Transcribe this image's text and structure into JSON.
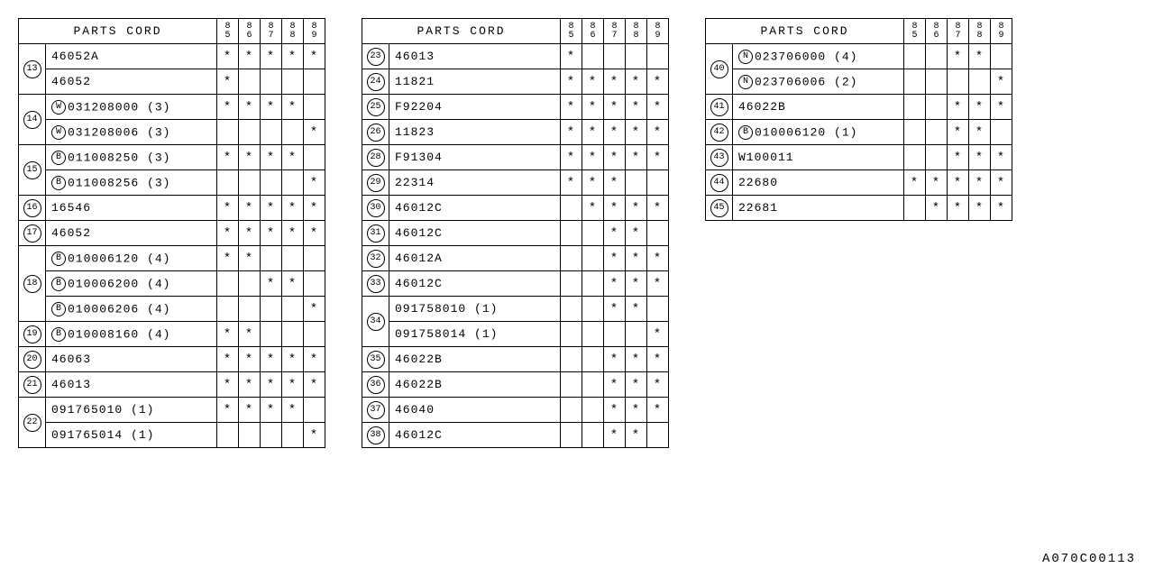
{
  "footer_code": "A070C00113",
  "header": {
    "parts_label": "PARTS CORD",
    "year_columns": [
      "85",
      "86",
      "87",
      "88",
      "89"
    ]
  },
  "tables": [
    {
      "rows": [
        {
          "idx": "13",
          "rowspan": 2,
          "prefix": "",
          "part": "46052A",
          "qty": "",
          "marks": [
            "*",
            "*",
            "*",
            "*",
            "*"
          ]
        },
        {
          "prefix": "",
          "part": "46052",
          "qty": "",
          "marks": [
            "*",
            "",
            "",
            "",
            ""
          ]
        },
        {
          "idx": "14",
          "rowspan": 2,
          "prefix": "W",
          "part": "031208000",
          "qty": "(3)",
          "marks": [
            "*",
            "*",
            "*",
            "*",
            ""
          ]
        },
        {
          "prefix": "W",
          "part": "031208006",
          "qty": "(3)",
          "marks": [
            "",
            "",
            "",
            "",
            "*"
          ]
        },
        {
          "idx": "15",
          "rowspan": 2,
          "prefix": "B",
          "part": "011008250",
          "qty": "(3)",
          "marks": [
            "*",
            "*",
            "*",
            "*",
            ""
          ]
        },
        {
          "prefix": "B",
          "part": "011008256",
          "qty": "(3)",
          "marks": [
            "",
            "",
            "",
            "",
            "*"
          ]
        },
        {
          "idx": "16",
          "rowspan": 1,
          "prefix": "",
          "part": "16546",
          "qty": "",
          "marks": [
            "*",
            "*",
            "*",
            "*",
            "*"
          ]
        },
        {
          "idx": "17",
          "rowspan": 1,
          "prefix": "",
          "part": "46052",
          "qty": "",
          "marks": [
            "*",
            "*",
            "*",
            "*",
            "*"
          ]
        },
        {
          "idx": "18",
          "rowspan": 3,
          "prefix": "B",
          "part": "010006120",
          "qty": "(4)",
          "marks": [
            "*",
            "*",
            "",
            "",
            ""
          ]
        },
        {
          "prefix": "B",
          "part": "010006200",
          "qty": "(4)",
          "marks": [
            "",
            "",
            "*",
            "*",
            ""
          ]
        },
        {
          "prefix": "B",
          "part": "010006206",
          "qty": "(4)",
          "marks": [
            "",
            "",
            "",
            "",
            "*"
          ]
        },
        {
          "idx": "19",
          "rowspan": 1,
          "prefix": "B",
          "part": "010008160",
          "qty": "(4)",
          "marks": [
            "*",
            "*",
            "",
            "",
            ""
          ]
        },
        {
          "idx": "20",
          "rowspan": 1,
          "prefix": "",
          "part": "46063",
          "qty": "",
          "marks": [
            "*",
            "*",
            "*",
            "*",
            "*"
          ]
        },
        {
          "idx": "21",
          "rowspan": 1,
          "prefix": "",
          "part": "46013",
          "qty": "",
          "marks": [
            "*",
            "*",
            "*",
            "*",
            "*"
          ]
        },
        {
          "idx": "22",
          "rowspan": 2,
          "prefix": "",
          "part": "091765010",
          "qty": "(1)",
          "marks": [
            "*",
            "*",
            "*",
            "*",
            ""
          ]
        },
        {
          "prefix": "",
          "part": "091765014",
          "qty": "(1)",
          "marks": [
            "",
            "",
            "",
            "",
            "*"
          ]
        }
      ]
    },
    {
      "rows": [
        {
          "idx": "23",
          "rowspan": 1,
          "prefix": "",
          "part": "46013",
          "qty": "",
          "marks": [
            "*",
            "",
            "",
            "",
            ""
          ]
        },
        {
          "idx": "24",
          "rowspan": 1,
          "prefix": "",
          "part": "11821",
          "qty": "",
          "marks": [
            "*",
            "*",
            "*",
            "*",
            "*"
          ]
        },
        {
          "idx": "25",
          "rowspan": 1,
          "prefix": "",
          "part": "F92204",
          "qty": "",
          "marks": [
            "*",
            "*",
            "*",
            "*",
            "*"
          ]
        },
        {
          "idx": "26",
          "rowspan": 1,
          "prefix": "",
          "part": "11823",
          "qty": "",
          "marks": [
            "*",
            "*",
            "*",
            "*",
            "*"
          ]
        },
        {
          "idx": "28",
          "rowspan": 1,
          "prefix": "",
          "part": "F91304",
          "qty": "",
          "marks": [
            "*",
            "*",
            "*",
            "*",
            "*"
          ]
        },
        {
          "idx": "29",
          "rowspan": 1,
          "prefix": "",
          "part": "22314",
          "qty": "",
          "marks": [
            "*",
            "*",
            "*",
            "",
            ""
          ]
        },
        {
          "idx": "30",
          "rowspan": 1,
          "prefix": "",
          "part": "46012C",
          "qty": "",
          "marks": [
            "",
            "*",
            "*",
            "*",
            "*"
          ]
        },
        {
          "idx": "31",
          "rowspan": 1,
          "prefix": "",
          "part": "46012C",
          "qty": "",
          "marks": [
            "",
            "",
            "*",
            "*",
            ""
          ]
        },
        {
          "idx": "32",
          "rowspan": 1,
          "prefix": "",
          "part": "46012A",
          "qty": "",
          "marks": [
            "",
            "",
            "*",
            "*",
            "*"
          ]
        },
        {
          "idx": "33",
          "rowspan": 1,
          "prefix": "",
          "part": "46012C",
          "qty": "",
          "marks": [
            "",
            "",
            "*",
            "*",
            "*"
          ]
        },
        {
          "idx": "34",
          "rowspan": 2,
          "prefix": "",
          "part": "091758010",
          "qty": "(1)",
          "marks": [
            "",
            "",
            "*",
            "*",
            ""
          ]
        },
        {
          "prefix": "",
          "part": "091758014",
          "qty": "(1)",
          "marks": [
            "",
            "",
            "",
            "",
            "*"
          ]
        },
        {
          "idx": "35",
          "rowspan": 1,
          "prefix": "",
          "part": "46022B",
          "qty": "",
          "marks": [
            "",
            "",
            "*",
            "*",
            "*"
          ]
        },
        {
          "idx": "36",
          "rowspan": 1,
          "prefix": "",
          "part": "46022B",
          "qty": "",
          "marks": [
            "",
            "",
            "*",
            "*",
            "*"
          ]
        },
        {
          "idx": "37",
          "rowspan": 1,
          "prefix": "",
          "part": "46040",
          "qty": "",
          "marks": [
            "",
            "",
            "*",
            "*",
            "*"
          ]
        },
        {
          "idx": "38",
          "rowspan": 1,
          "prefix": "",
          "part": "46012C",
          "qty": "",
          "marks": [
            "",
            "",
            "*",
            "*",
            ""
          ]
        }
      ]
    },
    {
      "rows": [
        {
          "idx": "40",
          "rowspan": 2,
          "prefix": "N",
          "part": "023706000",
          "qty": "(4)",
          "marks": [
            "",
            "",
            "*",
            "*",
            ""
          ]
        },
        {
          "prefix": "N",
          "part": "023706006",
          "qty": "(2)",
          "marks": [
            "",
            "",
            "",
            "",
            "*"
          ]
        },
        {
          "idx": "41",
          "rowspan": 1,
          "prefix": "",
          "part": "46022B",
          "qty": "",
          "marks": [
            "",
            "",
            "*",
            "*",
            "*"
          ]
        },
        {
          "idx": "42",
          "rowspan": 1,
          "prefix": "B",
          "part": "010006120",
          "qty": "(1)",
          "marks": [
            "",
            "",
            "*",
            "*",
            ""
          ]
        },
        {
          "idx": "43",
          "rowspan": 1,
          "prefix": "",
          "part": "W100011",
          "qty": "",
          "marks": [
            "",
            "",
            "*",
            "*",
            "*"
          ]
        },
        {
          "idx": "44",
          "rowspan": 1,
          "prefix": "",
          "part": "22680",
          "qty": "",
          "marks": [
            "*",
            "*",
            "*",
            "*",
            "*"
          ]
        },
        {
          "idx": "45",
          "rowspan": 1,
          "prefix": "",
          "part": "22681",
          "qty": "",
          "marks": [
            "",
            "*",
            "*",
            "*",
            "*"
          ]
        }
      ]
    }
  ]
}
